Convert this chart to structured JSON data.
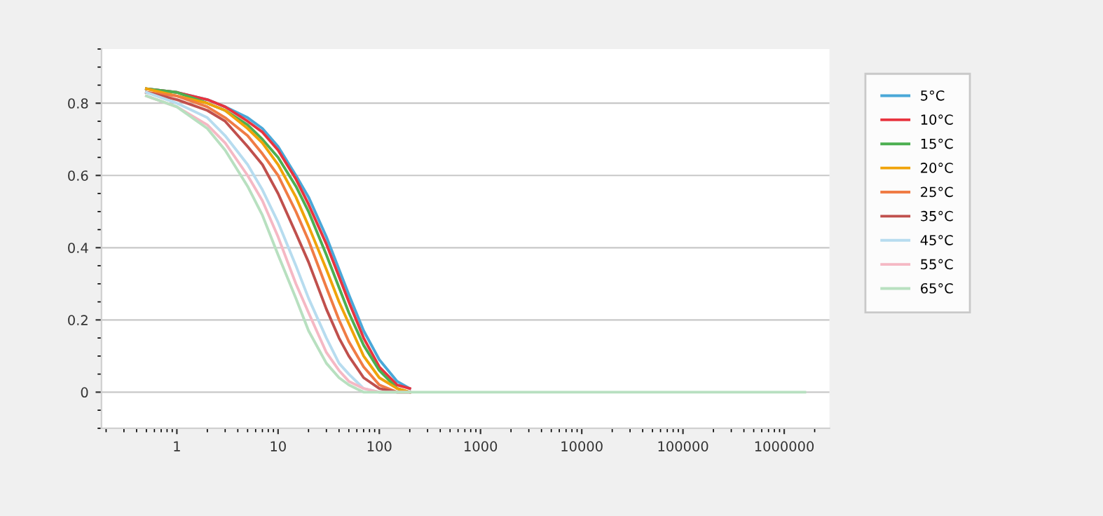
{
  "chart_data": {
    "type": "line",
    "x": [
      0.5,
      1,
      2,
      3,
      5,
      7,
      10,
      15,
      20,
      30,
      40,
      50,
      70,
      100,
      150,
      200,
      300,
      1000,
      10000,
      100000,
      1000000,
      1600000
    ],
    "series": [
      {
        "name": "5°C",
        "color": "#4aa8d8",
        "values": [
          0.84,
          0.83,
          0.81,
          0.79,
          0.76,
          0.73,
          0.68,
          0.6,
          0.54,
          0.43,
          0.34,
          0.27,
          0.17,
          0.09,
          0.03,
          0.01,
          null,
          null,
          null,
          null,
          null,
          null
        ]
      },
      {
        "name": "10°C",
        "color": "#e8343f",
        "values": [
          0.84,
          0.83,
          0.81,
          0.79,
          0.75,
          0.72,
          0.67,
          0.59,
          0.52,
          0.41,
          0.32,
          0.25,
          0.15,
          0.07,
          0.02,
          0.01,
          null,
          null,
          null,
          null,
          null,
          null
        ]
      },
      {
        "name": "15°C",
        "color": "#4caf50",
        "values": [
          0.84,
          0.83,
          0.8,
          0.78,
          0.74,
          0.7,
          0.65,
          0.57,
          0.5,
          0.38,
          0.29,
          0.22,
          0.13,
          0.06,
          0.01,
          0,
          null,
          null,
          null,
          null,
          null,
          null
        ]
      },
      {
        "name": "20°C",
        "color": "#f0a30a",
        "values": [
          0.84,
          0.82,
          0.8,
          0.78,
          0.73,
          0.69,
          0.63,
          0.54,
          0.46,
          0.34,
          0.25,
          0.19,
          0.1,
          0.04,
          0.01,
          0,
          null,
          null,
          null,
          null,
          null,
          null
        ]
      },
      {
        "name": "25°C",
        "color": "#f07c45",
        "values": [
          0.83,
          0.82,
          0.79,
          0.76,
          0.71,
          0.66,
          0.6,
          0.5,
          0.42,
          0.29,
          0.2,
          0.14,
          0.07,
          0.02,
          0,
          0,
          null,
          null,
          null,
          null,
          null,
          null
        ]
      },
      {
        "name": "35°C",
        "color": "#c0504d",
        "values": [
          0.83,
          0.81,
          0.78,
          0.75,
          0.68,
          0.63,
          0.55,
          0.44,
          0.36,
          0.23,
          0.15,
          0.1,
          0.04,
          0.01,
          0,
          0,
          null,
          null,
          null,
          null,
          null,
          null
        ]
      },
      {
        "name": "45°C",
        "color": "#b7dcef",
        "values": [
          0.83,
          0.8,
          0.76,
          0.71,
          0.63,
          0.56,
          0.47,
          0.35,
          0.26,
          0.15,
          0.08,
          0.05,
          0.01,
          0,
          0,
          0,
          null,
          null,
          null,
          null,
          null,
          null
        ]
      },
      {
        "name": "55°C",
        "color": "#f5b8c4",
        "values": [
          0.82,
          0.79,
          0.74,
          0.69,
          0.6,
          0.53,
          0.43,
          0.3,
          0.22,
          0.11,
          0.06,
          0.03,
          0.01,
          0,
          0,
          0,
          null,
          null,
          null,
          null,
          null,
          null
        ]
      },
      {
        "name": "65°C",
        "color": "#b8e0c0",
        "values": [
          0.82,
          0.79,
          0.73,
          0.67,
          0.57,
          0.49,
          0.38,
          0.26,
          0.17,
          0.08,
          0.04,
          0.02,
          0,
          0,
          0,
          0,
          0,
          0,
          0,
          0,
          0,
          0
        ]
      }
    ],
    "log": "x",
    "xlim": [
      0.18,
      2800000
    ],
    "xticks": [
      1,
      10,
      100,
      1000,
      10000,
      100000,
      1000000
    ],
    "ylim": [
      -0.1,
      0.95
    ],
    "yticks": [
      0,
      0.2,
      0.4,
      0.6,
      0.8
    ],
    "grid": "y",
    "legend": "right",
    "marker": "none",
    "line_style": "solid"
  }
}
